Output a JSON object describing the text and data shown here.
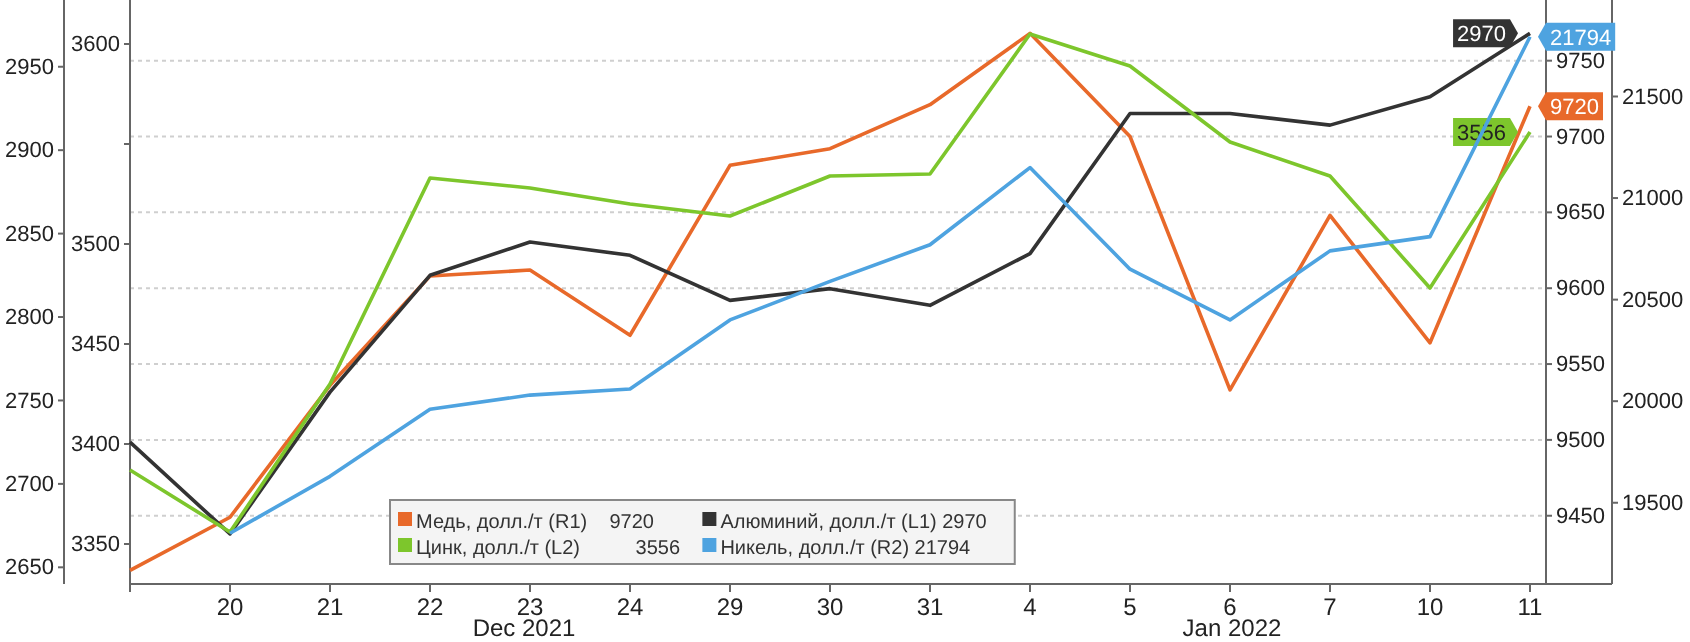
{
  "chart_data": [
    {
      "type": "line",
      "categories": [
        null,
        "20",
        "21",
        "22",
        "23",
        "24",
        "29",
        "30",
        "31",
        "4",
        "5",
        "6",
        "7",
        "10",
        "11"
      ],
      "ylim": [
        9405,
        9790
      ],
      "yticks": [
        9450,
        9500,
        9550,
        9600,
        9650,
        9700,
        9750
      ],
      "y2lim": [
        2640,
        2990
      ],
      "y2ticks": [
        2650,
        2700,
        2750,
        2800,
        2850,
        2900,
        2950
      ],
      "y3lim": [
        3330,
        3622
      ],
      "y3ticks": [
        3350,
        3400,
        3450,
        3500,
        {
          "value": 3550,
          "label": null
        },
        3600
      ],
      "grid": "y",
      "legend": "bottom",
      "marker": "none",
      "line_style": "solid",
      "annotations": [
        "Dec 2021",
        "Jan 2022"
      ],
      "series": [
        {
          "name": "Медь, долл./т (R1)    9720",
          "color": "#e8692a",
          "values": [
            9414,
            9449,
            9536,
            9608,
            9612,
            9569,
            9681,
            9692,
            9721,
            9768,
            9700,
            9533,
            9648,
            9564,
            9720
          ],
          "value_labels": [
            null,
            null,
            null,
            null,
            null,
            null,
            null,
            null,
            null,
            null,
            null,
            null,
            null,
            null,
            "9720"
          ]
        },
        {
          "name": "Алюминий, долл./т (L1) 2970",
          "color": "#333333",
          "axis": "y2",
          "values": [
            2725,
            2670,
            2755,
            2825,
            2845,
            2837,
            2810,
            2817,
            2807,
            2838,
            2922,
            2922,
            2915,
            2932,
            2970
          ],
          "value_labels": [
            null,
            null,
            null,
            null,
            null,
            null,
            null,
            null,
            null,
            null,
            null,
            null,
            null,
            null,
            "2970"
          ]
        },
        {
          "name": "Цинк, долл./т (L2)          3556",
          "color": "#7dc62c",
          "axis": "y3",
          "values": [
            3387,
            3356,
            3430,
            3533,
            3528,
            3520,
            3514,
            3534,
            3535,
            3605,
            3589,
            3551,
            3534,
            3478,
            3556
          ],
          "value_labels": [
            null,
            null,
            null,
            null,
            null,
            null,
            null,
            null,
            null,
            null,
            null,
            null,
            null,
            null,
            "3556"
          ]
        }
      ]
    },
    {
      "type": "line",
      "ylim": [
        19100,
        21975
      ],
      "yticks": [
        19500,
        20000,
        20500,
        21000,
        21500
      ],
      "tick_labels": "y",
      "legend": "bottom",
      "line_style": "solid",
      "series": [
        {
          "name": "Никель, долл./т (R2) 21794",
          "color": "#4ea3e0",
          "values": [
            null,
            19350,
            19630,
            19960,
            20030,
            20060,
            20400,
            20590,
            20770,
            21150,
            20650,
            20400,
            20740,
            20810,
            21794
          ],
          "value_labels": [
            null,
            null,
            null,
            null,
            null,
            null,
            null,
            null,
            null,
            null,
            null,
            null,
            null,
            null,
            "21794"
          ]
        }
      ]
    }
  ]
}
